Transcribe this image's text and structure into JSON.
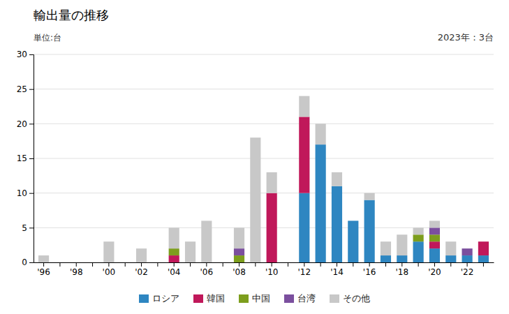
{
  "chart_data": {
    "type": "bar",
    "stacked": true,
    "title": "輸出量の推移",
    "ylabel": "単位:台",
    "annotation": "2023年：3台",
    "categories": [
      "'96",
      null,
      "'98",
      null,
      "'00",
      null,
      "'02",
      null,
      "'04",
      null,
      "'06",
      null,
      "'08",
      null,
      "'10",
      null,
      "'12",
      null,
      "'14",
      null,
      "'16",
      null,
      "'18",
      null,
      "'20",
      null,
      "'22",
      null
    ],
    "series": [
      {
        "name": "ロシア",
        "color": "#2E86C1",
        "values": [
          0,
          0,
          0,
          0,
          0,
          0,
          0,
          0,
          0,
          0,
          0,
          0,
          0,
          0,
          0,
          0,
          10,
          17,
          11,
          6,
          9,
          1,
          1,
          3,
          2,
          1,
          1,
          1
        ]
      },
      {
        "name": "韓国",
        "color": "#C0185A",
        "values": [
          0,
          0,
          0,
          0,
          0,
          0,
          0,
          0,
          1,
          0,
          0,
          0,
          0,
          0,
          10,
          0,
          11,
          0,
          0,
          0,
          0,
          0,
          0,
          0,
          1,
          0,
          0,
          2
        ]
      },
      {
        "name": "中国",
        "color": "#7D9E1D",
        "values": [
          0,
          0,
          0,
          0,
          0,
          0,
          0,
          0,
          1,
          0,
          0,
          0,
          1,
          0,
          0,
          0,
          0,
          0,
          0,
          0,
          0,
          0,
          0,
          1,
          1,
          0,
          0,
          0
        ]
      },
      {
        "name": "台湾",
        "color": "#7B4F9E",
        "values": [
          0,
          0,
          0,
          0,
          0,
          0,
          0,
          0,
          0,
          0,
          0,
          0,
          1,
          0,
          0,
          0,
          0,
          0,
          0,
          0,
          0,
          0,
          0,
          0,
          1,
          0,
          1,
          0
        ]
      },
      {
        "name": "その他",
        "color": "#C8C8C8",
        "values": [
          1,
          0,
          0,
          0,
          3,
          0,
          2,
          0,
          3,
          3,
          6,
          0,
          3,
          18,
          3,
          0,
          3,
          3,
          2,
          0,
          1,
          2,
          3,
          1,
          1,
          2,
          0,
          0
        ]
      }
    ],
    "ylim": [
      0,
      30
    ],
    "yticks": [
      0,
      5,
      10,
      15,
      20,
      25,
      30
    ],
    "grid": true,
    "legend": "bottom"
  }
}
